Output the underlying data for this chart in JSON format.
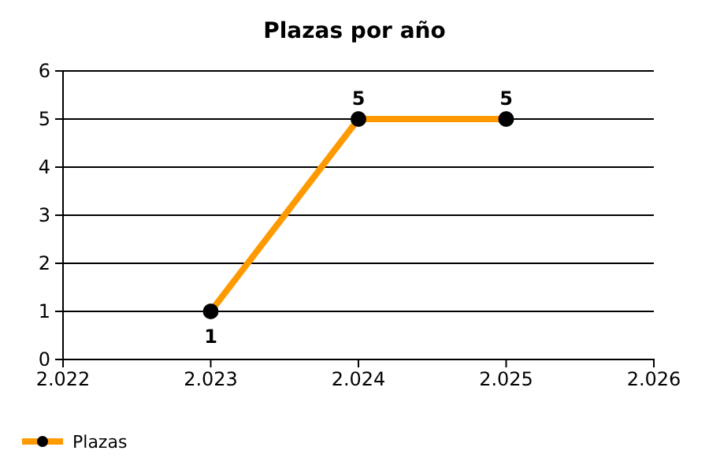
{
  "chart_data": {
    "type": "line",
    "title": "Plazas por año",
    "x": [
      2023,
      2024,
      2025
    ],
    "series": [
      {
        "name": "Plazas",
        "color": "#ff9900",
        "values": [
          1,
          5,
          5
        ]
      }
    ],
    "xlim": [
      2022,
      2026
    ],
    "xticks": [
      {
        "value": 2022,
        "label": "2.022"
      },
      {
        "value": 2023,
        "label": "2.023"
      },
      {
        "value": 2024,
        "label": "2.024"
      },
      {
        "value": 2025,
        "label": "2.025"
      },
      {
        "value": 2026,
        "label": "2.026"
      }
    ],
    "ylim": [
      0,
      6
    ],
    "yticks": [
      0,
      1,
      2,
      3,
      4,
      5,
      6
    ],
    "grid": "y",
    "legend": "bottom left",
    "marker": "circle",
    "line_style": "solid",
    "data_labels": true
  }
}
